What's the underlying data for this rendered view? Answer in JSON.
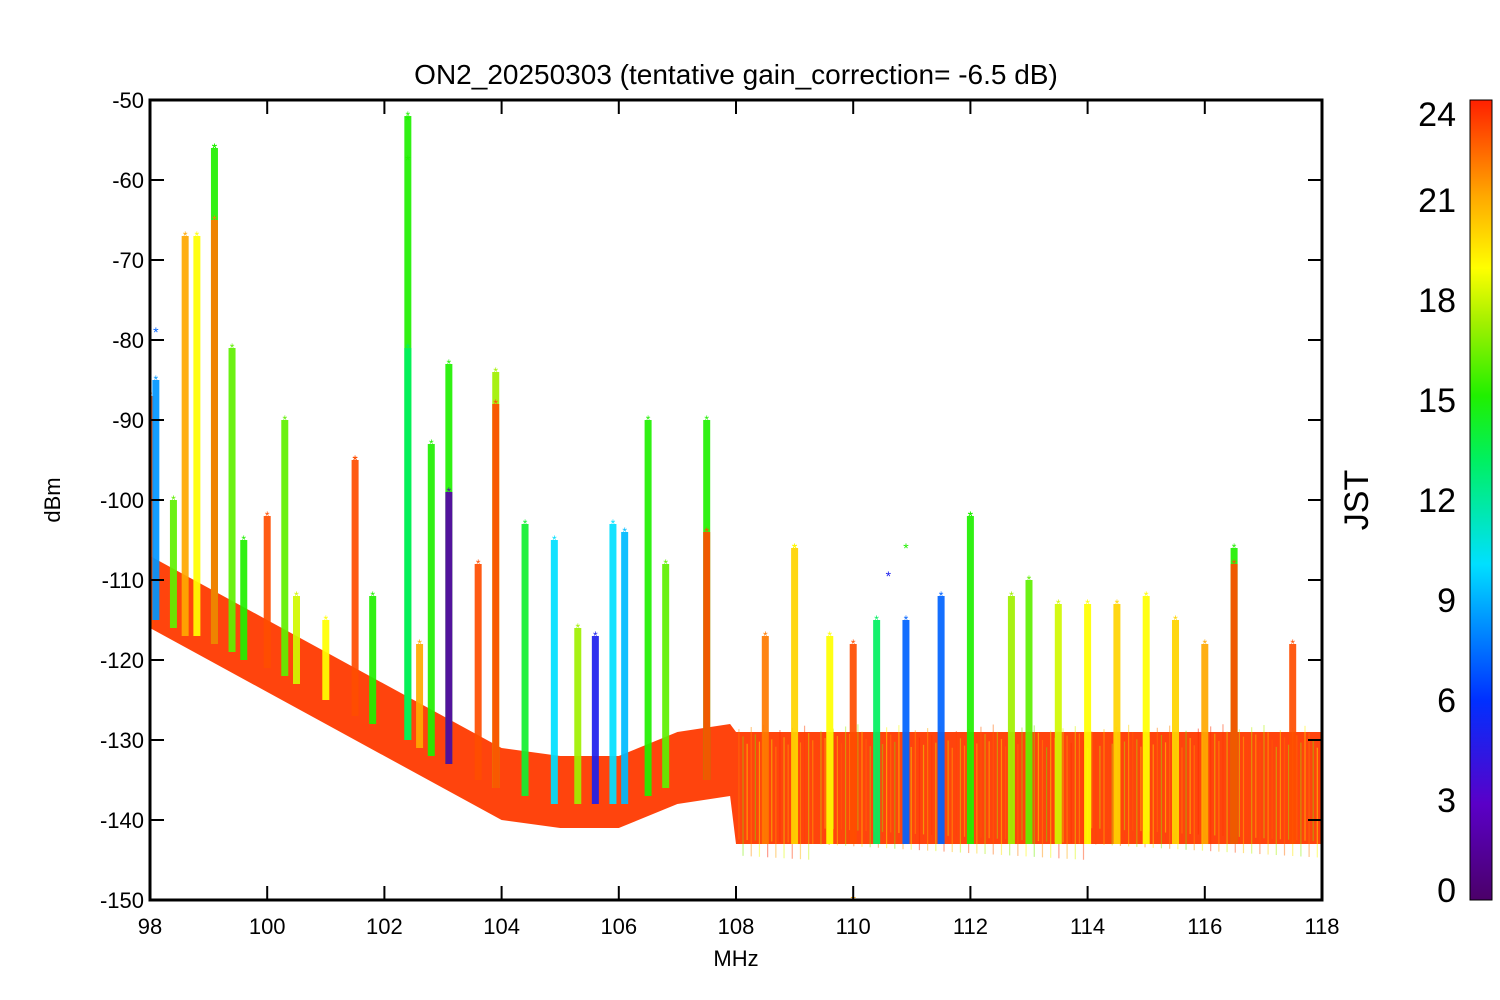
{
  "chart_data": {
    "type": "scatter",
    "title": "ON2_20250303 (tentative gain_correction= -6.5 dB)",
    "xlabel": "MHz",
    "ylabel": "dBm",
    "xlim": [
      98,
      118
    ],
    "ylim": [
      -150,
      -50
    ],
    "x_ticks": [
      "98",
      "100",
      "102",
      "104",
      "106",
      "108",
      "110",
      "112",
      "114",
      "116",
      "118"
    ],
    "y_ticks": [
      "-50",
      "-60",
      "-70",
      "-80",
      "-90",
      "-100",
      "-110",
      "-120",
      "-130",
      "-140",
      "-150"
    ],
    "colorbar": {
      "label": "JST",
      "range": [
        0,
        24
      ],
      "ticks": [
        "0",
        "3",
        "6",
        "9",
        "12",
        "15",
        "18",
        "21",
        "24"
      ],
      "colormap": "rainbow (purple-blue-cyan-green-yellow-orange-red)"
    },
    "noise_floor": [
      {
        "x": 98.0,
        "y": -113
      },
      {
        "x": 99.0,
        "y": -117
      },
      {
        "x": 100.0,
        "y": -121
      },
      {
        "x": 101.0,
        "y": -125
      },
      {
        "x": 102.0,
        "y": -129
      },
      {
        "x": 103.0,
        "y": -133
      },
      {
        "x": 104.0,
        "y": -137
      },
      {
        "x": 105.0,
        "y": -138
      },
      {
        "x": 106.0,
        "y": -138
      },
      {
        "x": 107.0,
        "y": -135
      },
      {
        "x": 107.9,
        "y": -134
      },
      {
        "x": 108.0,
        "y": -135
      },
      {
        "x": 118.0,
        "y": -135
      }
    ],
    "series": [
      {
        "x": 98.0,
        "y_min": -116,
        "y_max": -87,
        "color_jst": 23
      },
      {
        "x": 98.1,
        "y_min": -115,
        "y_max": -85,
        "color_jst": 8
      },
      {
        "x": 98.4,
        "y_min": -116,
        "y_max": -100,
        "color_jst": 16
      },
      {
        "x": 98.6,
        "y_min": -117,
        "y_max": -67,
        "color_jst": 21
      },
      {
        "x": 98.8,
        "y_min": -117,
        "y_max": -67,
        "color_jst": 19
      },
      {
        "x": 99.1,
        "y_min": -118,
        "y_max": -56,
        "color_jst": 15
      },
      {
        "x": 99.1,
        "y_min": -118,
        "y_max": -65,
        "color_jst": 22
      },
      {
        "x": 99.4,
        "y_min": -119,
        "y_max": -81,
        "color_jst": 16
      },
      {
        "x": 99.6,
        "y_min": -120,
        "y_max": -105,
        "color_jst": 15
      },
      {
        "x": 100.0,
        "y_min": -121,
        "y_max": -102,
        "color_jst": 23
      },
      {
        "x": 100.3,
        "y_min": -122,
        "y_max": -90,
        "color_jst": 16
      },
      {
        "x": 100.5,
        "y_min": -123,
        "y_max": -112,
        "color_jst": 18
      },
      {
        "x": 101.0,
        "y_min": -125,
        "y_max": -115,
        "color_jst": 19
      },
      {
        "x": 101.5,
        "y_min": -127,
        "y_max": -95,
        "color_jst": 23
      },
      {
        "x": 101.8,
        "y_min": -128,
        "y_max": -112,
        "color_jst": 15
      },
      {
        "x": 102.4,
        "y_min": -130,
        "y_max": -52,
        "color_jst": 15
      },
      {
        "x": 102.4,
        "y_min": -130,
        "y_max": -81,
        "color_jst": 13
      },
      {
        "x": 102.6,
        "y_min": -131,
        "y_max": -118,
        "color_jst": 21
      },
      {
        "x": 102.8,
        "y_min": -132,
        "y_max": -93,
        "color_jst": 15
      },
      {
        "x": 103.1,
        "y_min": -133,
        "y_max": -83,
        "color_jst": 15
      },
      {
        "x": 103.1,
        "y_min": -133,
        "y_max": -99,
        "color_jst": 2
      },
      {
        "x": 103.6,
        "y_min": -135,
        "y_max": -108,
        "color_jst": 23
      },
      {
        "x": 103.9,
        "y_min": -136,
        "y_max": -84,
        "color_jst": 17
      },
      {
        "x": 103.9,
        "y_min": -136,
        "y_max": -88,
        "color_jst": 23
      },
      {
        "x": 104.4,
        "y_min": -137,
        "y_max": -103,
        "color_jst": 14
      },
      {
        "x": 104.9,
        "y_min": -138,
        "y_max": -105,
        "color_jst": 10
      },
      {
        "x": 105.3,
        "y_min": -138,
        "y_max": -116,
        "color_jst": 17
      },
      {
        "x": 105.6,
        "y_min": -138,
        "y_max": -117,
        "color_jst": 5
      },
      {
        "x": 105.9,
        "y_min": -138,
        "y_max": -103,
        "color_jst": 10
      },
      {
        "x": 106.1,
        "y_min": -138,
        "y_max": -104,
        "color_jst": 9
      },
      {
        "x": 106.5,
        "y_min": -137,
        "y_max": -90,
        "color_jst": 15
      },
      {
        "x": 106.8,
        "y_min": -136,
        "y_max": -108,
        "color_jst": 16
      },
      {
        "x": 107.5,
        "y_min": -135,
        "y_max": -90,
        "color_jst": 15
      },
      {
        "x": 107.5,
        "y_min": -135,
        "y_max": -104,
        "color_jst": 23
      },
      {
        "x": 108.5,
        "y_min": -143,
        "y_max": -117,
        "color_jst": 22
      },
      {
        "x": 109.0,
        "y_min": -143,
        "y_max": -106,
        "color_jst": 20
      },
      {
        "x": 109.6,
        "y_min": -143,
        "y_max": -117,
        "color_jst": 19
      },
      {
        "x": 110.0,
        "y_min": -143,
        "y_max": -118,
        "color_jst": 23
      },
      {
        "x": 110.4,
        "y_min": -143,
        "y_max": -115,
        "color_jst": 13
      },
      {
        "x": 110.9,
        "y_min": -143,
        "y_max": -115,
        "color_jst": 7
      },
      {
        "x": 111.5,
        "y_min": -143,
        "y_max": -112,
        "color_jst": 7
      },
      {
        "x": 112.0,
        "y_min": -143,
        "y_max": -102,
        "color_jst": 15
      },
      {
        "x": 112.7,
        "y_min": -143,
        "y_max": -112,
        "color_jst": 17
      },
      {
        "x": 113.0,
        "y_min": -143,
        "y_max": -110,
        "color_jst": 16
      },
      {
        "x": 113.5,
        "y_min": -143,
        "y_max": -113,
        "color_jst": 18
      },
      {
        "x": 114.0,
        "y_min": -143,
        "y_max": -113,
        "color_jst": 19
      },
      {
        "x": 114.5,
        "y_min": -143,
        "y_max": -113,
        "color_jst": 20
      },
      {
        "x": 115.0,
        "y_min": -143,
        "y_max": -112,
        "color_jst": 19
      },
      {
        "x": 115.5,
        "y_min": -143,
        "y_max": -115,
        "color_jst": 20
      },
      {
        "x": 116.0,
        "y_min": -143,
        "y_max": -118,
        "color_jst": 21
      },
      {
        "x": 116.5,
        "y_min": -143,
        "y_max": -106,
        "color_jst": 15
      },
      {
        "x": 116.5,
        "y_min": -143,
        "y_max": -108,
        "color_jst": 23
      },
      {
        "x": 117.5,
        "y_min": -143,
        "y_max": -118,
        "color_jst": 23
      }
    ],
    "points": [
      {
        "x": 102.4,
        "y": -57.5,
        "color_jst": 15
      },
      {
        "x": 102.4,
        "y": -52.5,
        "color_jst": 15
      },
      {
        "x": 99.1,
        "y": -56,
        "color_jst": 15
      },
      {
        "x": 101.5,
        "y": -95,
        "color_jst": 23
      },
      {
        "x": 98.1,
        "y": -79,
        "color_jst": 7
      },
      {
        "x": 110.0,
        "y": -150,
        "color_jst": 21
      },
      {
        "x": 110.6,
        "y": -109.5,
        "color_jst": 5
      },
      {
        "x": 110.9,
        "y": -106,
        "color_jst": 15
      },
      {
        "x": 109.0,
        "y": -106,
        "color_jst": 19
      },
      {
        "x": 112.0,
        "y": -102,
        "color_jst": 15
      }
    ]
  }
}
